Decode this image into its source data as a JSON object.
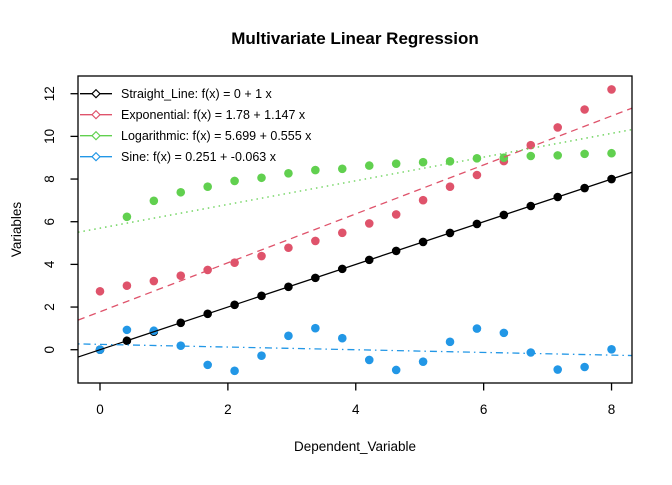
{
  "chart_data": {
    "type": "scatter",
    "title": "Multivariate Linear Regression",
    "xlabel": "Dependent_Variable",
    "ylabel": "Variables",
    "xlim": [
      -0.344,
      8.32
    ],
    "ylim": [
      -1.56,
      12.83
    ],
    "xticks": [
      0,
      2,
      4,
      6,
      8
    ],
    "yticks": [
      0,
      2,
      4,
      6,
      8,
      10,
      12
    ],
    "grid": false,
    "legend_position": "top-left",
    "background": "#ffffff",
    "series": [
      {
        "name": "Straight_Line",
        "legend_label": "Straight_Line:  f(x) = 0 + 1 x",
        "color": "#000000",
        "line_type": "solid",
        "fit_intercept": 0,
        "fit_slope": 1,
        "x": [
          0,
          0.421,
          0.842,
          1.263,
          1.684,
          2.105,
          2.526,
          2.947,
          3.368,
          3.789,
          4.211,
          4.632,
          5.053,
          5.474,
          5.895,
          6.316,
          6.737,
          7.158,
          7.579,
          8
        ],
        "y": [
          0,
          0.421,
          0.842,
          1.263,
          1.684,
          2.105,
          2.526,
          2.947,
          3.368,
          3.789,
          4.211,
          4.632,
          5.053,
          5.474,
          5.895,
          6.316,
          6.737,
          7.158,
          7.579,
          8
        ]
      },
      {
        "name": "Exponential",
        "legend_label": "Exponential:  f(x) = 1.78 + 1.147 x",
        "color": "#DF536B",
        "line_type": "dashed",
        "fit_intercept": 1.78,
        "fit_slope": 1.147,
        "x": [
          0,
          0.421,
          0.842,
          1.263,
          1.684,
          2.105,
          2.526,
          2.947,
          3.368,
          3.789,
          4.211,
          4.632,
          5.053,
          5.474,
          5.895,
          6.316,
          6.737,
          7.158,
          7.579,
          8
        ],
        "y": [
          2.74,
          3.0,
          3.22,
          3.47,
          3.74,
          4.08,
          4.39,
          4.78,
          5.1,
          5.48,
          5.92,
          6.34,
          7.01,
          7.64,
          8.19,
          8.84,
          9.59,
          10.42,
          11.26,
          12.2
        ]
      },
      {
        "name": "Logarithmic",
        "legend_label": "Logarithmic:  f(x) = 5.699 + 0.555 x",
        "color": "#61D04F",
        "line_type": "dotted",
        "fit_intercept": 5.699,
        "fit_slope": 0.555,
        "x": [
          0.421,
          0.842,
          1.263,
          1.684,
          2.105,
          2.526,
          2.947,
          3.368,
          3.789,
          4.211,
          4.632,
          5.053,
          5.474,
          5.895,
          6.316,
          6.737,
          7.158,
          7.579,
          8
        ],
        "y": [
          6.23,
          6.98,
          7.38,
          7.64,
          7.91,
          8.06,
          8.27,
          8.42,
          8.48,
          8.63,
          8.72,
          8.79,
          8.83,
          8.97,
          9.0,
          9.08,
          9.11,
          9.18,
          9.21
        ]
      },
      {
        "name": "Sine",
        "legend_label": "Sine:  f(x) = 0.251 + -0.063 x",
        "color": "#2297E6",
        "line_type": "dashdot",
        "fit_intercept": 0.251,
        "fit_slope": -0.063,
        "x": [
          0,
          0.421,
          0.842,
          1.263,
          1.684,
          2.105,
          2.526,
          2.947,
          3.368,
          3.789,
          4.211,
          4.632,
          5.053,
          5.474,
          5.895,
          6.316,
          6.737,
          7.158,
          7.579,
          8
        ],
        "y": [
          0.0,
          0.93,
          0.89,
          0.19,
          -0.71,
          -0.99,
          -0.28,
          0.65,
          1.01,
          0.54,
          -0.48,
          -0.95,
          -0.56,
          0.37,
          0.99,
          0.79,
          -0.13,
          -0.93,
          -0.81,
          0.02
        ]
      }
    ]
  }
}
